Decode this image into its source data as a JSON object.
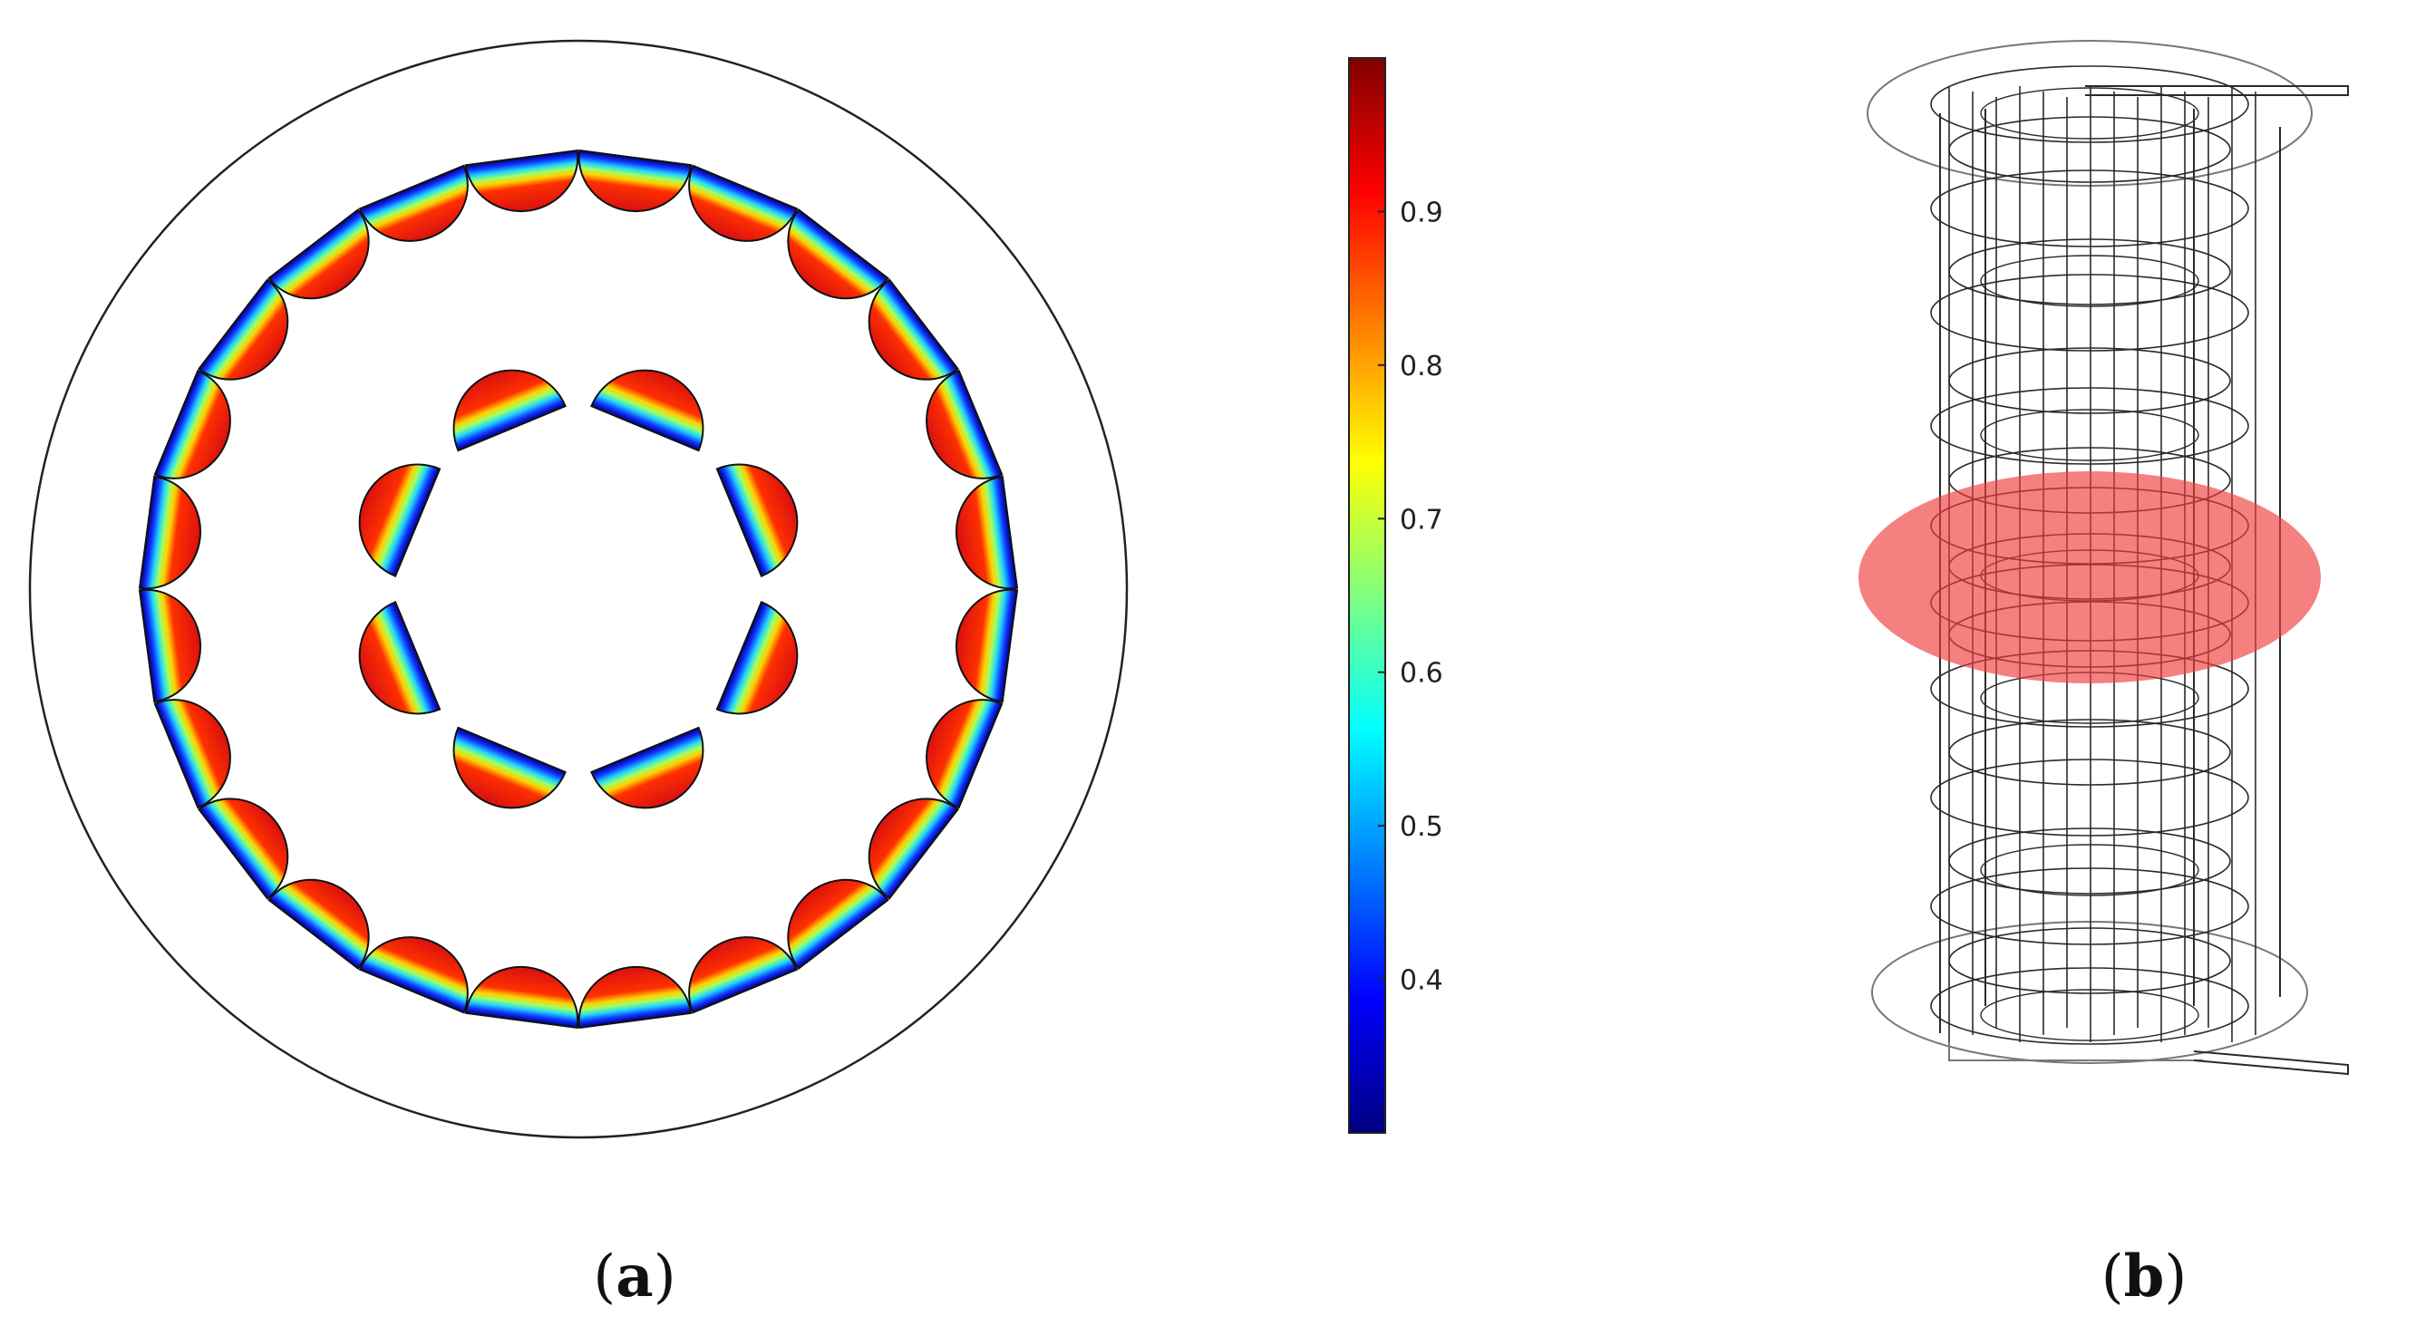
{
  "panels": [
    {
      "id": "a",
      "caption_open": "(",
      "caption_letter": "a",
      "caption_close": ")"
    },
    {
      "id": "b",
      "caption_open": "(",
      "caption_letter": "b",
      "caption_close": ")"
    }
  ],
  "colorbar": {
    "colormap": "jet",
    "range": [
      0.3,
      1.0
    ],
    "tick_values": [
      0.4,
      0.5,
      0.6,
      0.7,
      0.8,
      0.9
    ],
    "tick_labels": [
      "0.4",
      "0.5",
      "0.6",
      "0.7",
      "0.8",
      "0.9"
    ]
  },
  "cross_section": {
    "outer_ring_channels": 24,
    "inner_ring_channels": 8
  },
  "model_3d": {
    "highlight_color": "#f03c3c"
  }
}
